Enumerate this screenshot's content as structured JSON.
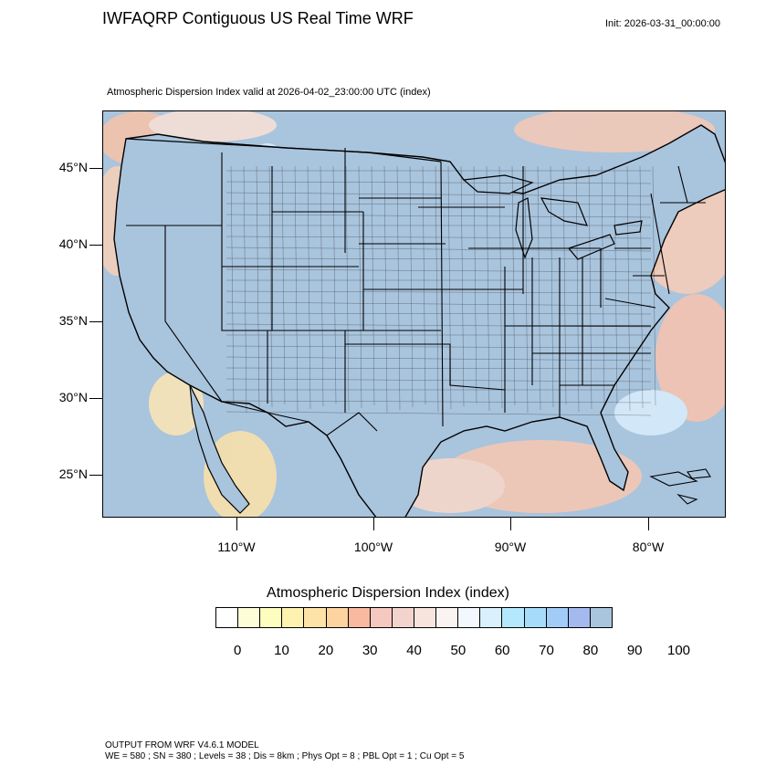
{
  "header": {
    "title": "IWFAQRP Contiguous US Real Time WRF",
    "init": "Init: 2026-03-31_00:00:00",
    "subtitle": "Atmospheric Dispersion Index valid at 2026-04-02_23:00:00 UTC   (index)"
  },
  "map": {
    "lat_labels": [
      "45°N",
      "40°N",
      "35°N",
      "30°N",
      "25°N"
    ],
    "lon_labels": [
      "110°W",
      "100°W",
      "90°W",
      "80°W"
    ],
    "ocean_color": "#a9c4dd",
    "land_color": "#a9c4dd",
    "boundary_color": "#000000"
  },
  "colorbar": {
    "title": "Atmospheric Dispersion Index  (index)",
    "colors": [
      "#ffffff",
      "#fdfdd8",
      "#fdfdc0",
      "#fdf2b0",
      "#fde3a8",
      "#fdd3a0",
      "#f9b8a0",
      "#f5c8c0",
      "#f2d4cc",
      "#f7e4dc",
      "#fbf2f2",
      "#f2f8fd",
      "#daf0fd",
      "#b4e8fd",
      "#a6dcfa",
      "#a2ccf8",
      "#a4baee",
      "#a9c4dd"
    ],
    "labels": [
      "0",
      "10",
      "20",
      "30",
      "40",
      "50",
      "60",
      "70",
      "80",
      "90",
      "100"
    ]
  },
  "footer": {
    "line1": "OUTPUT FROM WRF V4.6.1 MODEL",
    "line2": "WE = 580 ; SN = 380 ; Levels = 38 ; Dis = 8km ; Phys Opt = 8 ; PBL Opt = 1 ; Cu Opt = 5"
  }
}
